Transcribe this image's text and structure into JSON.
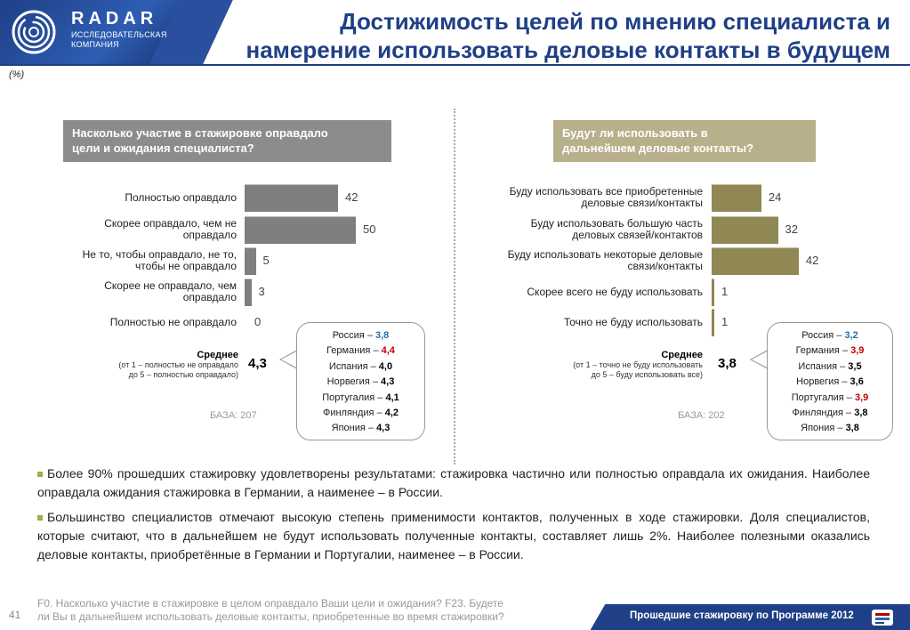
{
  "header": {
    "brand": "RADAR",
    "brand_sub_1": "ИССЛЕДОВАТЕЛЬСКАЯ",
    "brand_sub_2": "КОМПАНИЯ",
    "title_line1": "Достижимость целей по мнению специалиста и",
    "title_line2": "намерение использовать деловые контакты в будущем",
    "unit_note": "(%)"
  },
  "chart_data": [
    {
      "type": "bar",
      "orientation": "horizontal",
      "title_line1": "Насколько участие в стажировке оправдало",
      "title_line2": "цели и ожидания специалиста?",
      "categories": [
        [
          "Полностью оправдало"
        ],
        [
          "Скорее оправдало, чем не",
          "оправдало"
        ],
        [
          "Не то, чтобы оправдало, не то,",
          "чтобы не оправдало"
        ],
        [
          "Скорее не оправдало, чем",
          "оправдало"
        ],
        [
          "Полностью не оправдало"
        ]
      ],
      "values": [
        42,
        50,
        5,
        3,
        0
      ],
      "average_label": "Среднее",
      "average_note_1": "(от 1 – полностью не оправдало",
      "average_note_2": "до 5 – полностью оправдало)",
      "average_value": "4,3",
      "base": "БАЗА: 207",
      "bar_color": "#7f7f7f",
      "countries": [
        {
          "name": "Россия",
          "value": "3,8",
          "color": "blue"
        },
        {
          "name": "Германия",
          "value": "4,4",
          "color": "red"
        },
        {
          "name": "Испания",
          "value": "4,0",
          "color": ""
        },
        {
          "name": "Норвегия",
          "value": "4,3",
          "color": ""
        },
        {
          "name": "Португалия",
          "value": "4,1",
          "color": ""
        },
        {
          "name": "Финляндия",
          "value": "4,2",
          "color": ""
        },
        {
          "name": "Япония",
          "value": "4,3",
          "color": ""
        }
      ]
    },
    {
      "type": "bar",
      "orientation": "horizontal",
      "title_line1": "Будут ли использовать в",
      "title_line2": "дальнейшем деловые контакты?",
      "categories": [
        [
          "Буду использовать все приобретенные",
          "деловые связи/контакты"
        ],
        [
          "Буду использовать большую часть",
          "деловых связей/контактов"
        ],
        [
          "Буду использовать некоторые деловые",
          "связи/контакты"
        ],
        [
          "Скорее всего не буду использовать"
        ],
        [
          "Точно не буду использовать"
        ]
      ],
      "values": [
        24,
        32,
        42,
        1,
        1
      ],
      "average_label": "Среднее",
      "average_note_1": "(от 1 – точно не буду использовать",
      "average_note_2": "до 5 – буду использовать все)",
      "average_value": "3,8",
      "base": "БАЗА: 202",
      "bar_color": "#8f8754",
      "countries": [
        {
          "name": "Россия",
          "value": "3,2",
          "color": "blue"
        },
        {
          "name": "Германия",
          "value": "3,9",
          "color": "red"
        },
        {
          "name": "Испания",
          "value": "3,5",
          "color": ""
        },
        {
          "name": "Норвегия",
          "value": "3,6",
          "color": ""
        },
        {
          "name": "Португалия",
          "value": "3,9",
          "color": "red"
        },
        {
          "name": "Финляндия",
          "value": "3,8",
          "color": ""
        },
        {
          "name": "Япония",
          "value": "3,8",
          "color": ""
        }
      ]
    }
  ],
  "summary": [
    "Более 90% прошедших стажировку удовлетворены результатами: стажировка частично или полностью оправдала их ожидания. Наиболее оправдала ожидания стажировка в Германии, а наименее – в России.",
    "Большинство специалистов отмечают высокую степень применимости контактов, полученных в ходе стажировки. Доля специалистов, которые считают, что в дальнейшем не будут использовать полученные контакты, составляет лишь 2%. Наиболее полезными оказались деловые контакты, приобретённые в Германии и Португалии, наименее – в России."
  ],
  "footer": {
    "page_number": "41",
    "footnote_line1": "F0. Насколько участие в стажировке в целом оправдало Ваши цели и ожидания? F23. Будете",
    "footnote_line2": "ли Вы в дальнейшем использовать деловые контакты, приобретенные во время стажировки?",
    "program": "Прошедшие стажировку по Программе 2012"
  },
  "colors": {
    "brand_blue": "#1f3f86",
    "left_box": "#8c8c8c",
    "right_box": "#b7b08a",
    "bullet_green": "#9ab04d",
    "highlight_blue": "#1f6fb2",
    "highlight_red": "#c00000"
  }
}
